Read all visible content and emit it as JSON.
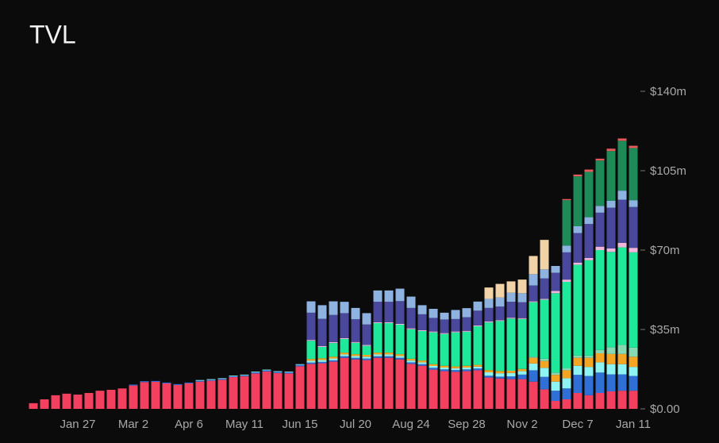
{
  "chart_data": {
    "type": "stacked_bar",
    "title": "TVL",
    "categories": [
      null,
      null,
      null,
      null,
      "Jan 27",
      null,
      null,
      null,
      null,
      "Mar 2",
      null,
      null,
      null,
      null,
      "Apr 6",
      null,
      null,
      null,
      null,
      "May 11",
      null,
      null,
      null,
      null,
      "Jun 15",
      null,
      null,
      null,
      null,
      "Jul 20",
      null,
      null,
      null,
      null,
      "Aug 24",
      null,
      null,
      null,
      null,
      "Sep 28",
      null,
      null,
      null,
      null,
      "Nov 2",
      null,
      null,
      null,
      null,
      "Dec 7",
      null,
      null,
      null,
      null,
      "Jan 11"
    ],
    "ylim": [
      0,
      140
    ],
    "yticks": [
      {
        "value": 0,
        "label": "$0.00"
      },
      {
        "value": 35,
        "label": "$35m"
      },
      {
        "value": 70,
        "label": "$70m"
      },
      {
        "value": 105,
        "label": "$105m"
      },
      {
        "value": 140,
        "label": "$140m"
      }
    ],
    "series": [
      {
        "color": "#f4405f",
        "values": [
          2.5,
          4.2,
          6,
          6.7,
          6.3,
          7,
          8,
          8.4,
          9,
          10.3,
          11.8,
          11.9,
          11.2,
          10.5,
          11.2,
          12,
          12.4,
          12.8,
          14,
          14.4,
          15.6,
          16.5,
          15.8,
          15.6,
          18.8,
          19.8,
          20.1,
          20.8,
          22.5,
          21.8,
          21.5,
          22.5,
          22.5,
          21.8,
          19.8,
          19,
          17.3,
          16.6,
          16.3,
          16.6,
          17,
          13.8,
          13.4,
          13.1,
          13.1,
          12,
          8.6,
          3.5,
          4.2,
          7,
          6,
          7,
          7.7,
          8,
          8
        ]
      },
      {
        "color": "#2f6fd6",
        "values": [
          0,
          0,
          0,
          0,
          0,
          0,
          0,
          0,
          0,
          0.4,
          0.4,
          0.4,
          0.4,
          0.4,
          0.4,
          0.4,
          0.4,
          0.4,
          0.4,
          0.4,
          0.5,
          0.5,
          0.5,
          0.5,
          0.6,
          0.6,
          0.6,
          0.6,
          0.7,
          0.7,
          0.7,
          0.7,
          0.7,
          0.7,
          0.7,
          0.7,
          0.8,
          0.8,
          0.8,
          0.8,
          0.8,
          0.8,
          0.8,
          1.2,
          2,
          5,
          5.5,
          4.5,
          4.8,
          8,
          8.5,
          9,
          7.5,
          7.2,
          6.5
        ]
      },
      {
        "color": "#8ef3f3",
        "values": [
          0,
          0,
          0,
          0,
          0,
          0,
          0,
          0,
          0,
          0,
          0,
          0,
          0,
          0,
          0,
          0.3,
          0.3,
          0.3,
          0.3,
          0.3,
          0.3,
          0.3,
          0.3,
          0.3,
          0.3,
          0.8,
          0.8,
          0.8,
          0.8,
          0.8,
          0.8,
          0.8,
          0.8,
          0.8,
          0.8,
          0.8,
          0.8,
          0.8,
          0.8,
          0.8,
          0.8,
          1.5,
          1.5,
          1.5,
          1.5,
          3,
          4,
          4,
          4.5,
          4,
          4,
          4.5,
          4.5,
          4.5,
          4
        ]
      },
      {
        "color": "#f5a524",
        "values": [
          0,
          0,
          0,
          0,
          0,
          0,
          0,
          0,
          0,
          0,
          0,
          0,
          0,
          0,
          0,
          0,
          0,
          0,
          0,
          0,
          0,
          0,
          0,
          0,
          0,
          0.8,
          0.8,
          0.8,
          0.8,
          0.8,
          0.8,
          0.8,
          0.8,
          0.8,
          0.8,
          0.8,
          0.8,
          0.8,
          0.8,
          0.8,
          0.8,
          1,
          1,
          1,
          1,
          2.5,
          3,
          3,
          3.5,
          3.5,
          4,
          4,
          4.5,
          4.5,
          4.5
        ]
      },
      {
        "color": "#86d9b3",
        "values": [
          0,
          0,
          0,
          0,
          0,
          0,
          0,
          0,
          0,
          0,
          0,
          0,
          0,
          0,
          0,
          0,
          0,
          0,
          0,
          0,
          0,
          0,
          0,
          0,
          0,
          0,
          0,
          0,
          0,
          0,
          0,
          0,
          0,
          0,
          0,
          0,
          0,
          0,
          0,
          0,
          0,
          0,
          0,
          0,
          0,
          0.5,
          1,
          1,
          1,
          1,
          1,
          1.5,
          3,
          4,
          4
        ]
      },
      {
        "color": "#1ee89a",
        "values": [
          0,
          0,
          0,
          0,
          0,
          0,
          0,
          0,
          0,
          0,
          0,
          0,
          0,
          0,
          0,
          0,
          0,
          0,
          0,
          0,
          0,
          0,
          0,
          0,
          0,
          8,
          5,
          6,
          6,
          5,
          4,
          13,
          13,
          13,
          13,
          13,
          14,
          14,
          15,
          15,
          17,
          21,
          22,
          23,
          22,
          24,
          26,
          35,
          38,
          40,
          42,
          44,
          42,
          43,
          42
        ]
      },
      {
        "color": "#f0b6dc",
        "values": [
          0,
          0,
          0,
          0,
          0,
          0,
          0,
          0,
          0,
          0,
          0,
          0,
          0,
          0,
          0,
          0,
          0,
          0,
          0,
          0,
          0,
          0,
          0,
          0,
          0,
          0.4,
          0.4,
          0.4,
          0.4,
          0.4,
          0.4,
          0.4,
          0.4,
          0.4,
          0.4,
          0.4,
          0.4,
          0.4,
          0.4,
          0.4,
          0.4,
          0.4,
          0.4,
          0.4,
          0.4,
          0.4,
          0.4,
          1,
          1,
          1,
          1,
          1.5,
          1.5,
          2,
          2
        ]
      },
      {
        "color": "#4a489c",
        "values": [
          0,
          0,
          0,
          0,
          0,
          0,
          0,
          0,
          0,
          0,
          0,
          0,
          0,
          0,
          0,
          0,
          0,
          0,
          0,
          0,
          0,
          0,
          0,
          0,
          0,
          12,
          12,
          12,
          11,
          10,
          9,
          9,
          9,
          10,
          9,
          7,
          6,
          6,
          5.5,
          6,
          6.5,
          6,
          6,
          7,
          7,
          7,
          9,
          8,
          12,
          13,
          15,
          15,
          18,
          19,
          18
        ]
      },
      {
        "color": "#8eb3e0",
        "values": [
          0,
          0,
          0,
          0,
          0,
          0,
          0,
          0,
          0,
          0,
          0,
          0,
          0,
          0,
          0,
          0,
          0,
          0,
          0,
          0,
          0,
          0,
          0,
          0,
          0,
          5,
          6,
          6,
          5,
          5,
          5,
          5,
          5,
          5.5,
          5,
          4,
          4,
          3,
          4,
          4,
          4,
          4,
          4,
          4,
          4,
          5,
          4,
          3,
          3,
          3,
          3,
          3,
          3,
          4,
          3
        ]
      },
      {
        "color": "#f2d3a8",
        "values": [
          0,
          0,
          0,
          0,
          0,
          0,
          0,
          0,
          0,
          0,
          0,
          0,
          0,
          0,
          0,
          0,
          0,
          0,
          0,
          0,
          0,
          0,
          0,
          0,
          0,
          0,
          0,
          0,
          0,
          0,
          0,
          0,
          0,
          0,
          0,
          0,
          0,
          0,
          0,
          0,
          0,
          5,
          6,
          5,
          6,
          8,
          13,
          0,
          0,
          0,
          0,
          0,
          0,
          0,
          0
        ]
      },
      {
        "color": "#1d8a57",
        "values": [
          0,
          0,
          0,
          0,
          0,
          0,
          0,
          0,
          0,
          0,
          0,
          0,
          0,
          0,
          0,
          0,
          0,
          0,
          0,
          0,
          0,
          0,
          0,
          0,
          0,
          0,
          0,
          0,
          0,
          0,
          0,
          0,
          0,
          0,
          0,
          0,
          0,
          0,
          0,
          0,
          0,
          0,
          0,
          0,
          0,
          0,
          0,
          0,
          20,
          22,
          20,
          20,
          22,
          22,
          23
        ]
      },
      {
        "color": "#e85a5a",
        "values": [
          0,
          0,
          0,
          0,
          0,
          0,
          0,
          0,
          0,
          0,
          0,
          0,
          0,
          0,
          0,
          0,
          0,
          0,
          0,
          0,
          0,
          0,
          0,
          0,
          0,
          0,
          0,
          0,
          0,
          0,
          0,
          0,
          0,
          0,
          0,
          0,
          0,
          0,
          0,
          0,
          0,
          0,
          0,
          0,
          0,
          0,
          0,
          0,
          0.5,
          0.8,
          1,
          0.8,
          1,
          1,
          1
        ]
      }
    ]
  }
}
